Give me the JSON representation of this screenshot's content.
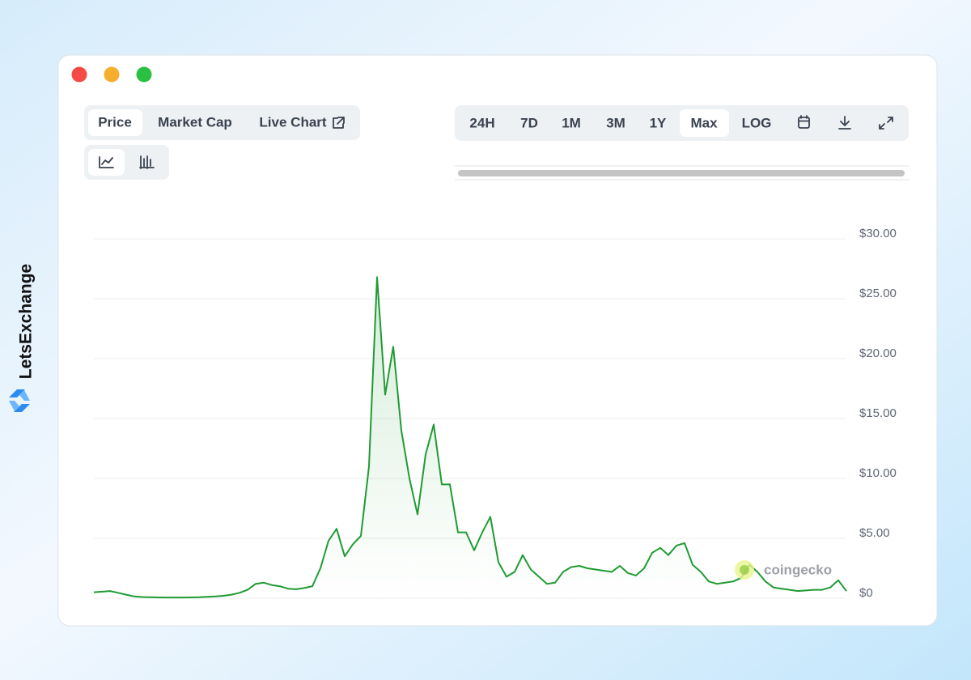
{
  "brand": {
    "name": "LetsExchange"
  },
  "tabs": {
    "views": [
      "Price",
      "Market Cap",
      "Live Chart"
    ],
    "active_view": "Price",
    "ranges": [
      "24H",
      "7D",
      "1M",
      "3M",
      "1Y",
      "Max",
      "LOG"
    ],
    "active_range": "Max"
  },
  "watermark": "coingecko",
  "chart_data": {
    "type": "line",
    "color": "#1f9b33",
    "area": true,
    "grid": true,
    "ylim": [
      0,
      30
    ],
    "yticks": [
      {
        "value": 0,
        "label": "$0"
      },
      {
        "value": 5,
        "label": "$5.00"
      },
      {
        "value": 10,
        "label": "$10.00"
      },
      {
        "value": 15,
        "label": "$15.00"
      },
      {
        "value": 20,
        "label": "$20.00"
      },
      {
        "value": 25,
        "label": "$25.00"
      },
      {
        "value": 30,
        "label": "$30.00"
      }
    ],
    "values": [
      0.5,
      0.55,
      0.6,
      0.45,
      0.3,
      0.15,
      0.1,
      0.08,
      0.07,
      0.06,
      0.06,
      0.06,
      0.07,
      0.08,
      0.12,
      0.15,
      0.2,
      0.3,
      0.45,
      0.7,
      1.2,
      1.3,
      1.1,
      1.0,
      0.8,
      0.75,
      0.85,
      1.0,
      2.5,
      4.8,
      5.8,
      3.5,
      4.5,
      5.2,
      11,
      26.8,
      17,
      21,
      14,
      10,
      7,
      12,
      14.5,
      9.5,
      9.5,
      5.5,
      5.5,
      4,
      5.5,
      6.8,
      3,
      1.8,
      2.2,
      3.6,
      2.4,
      1.8,
      1.2,
      1.3,
      2.2,
      2.6,
      2.7,
      2.5,
      2.4,
      2.3,
      2.2,
      2.7,
      2.1,
      1.9,
      2.5,
      3.8,
      4.2,
      3.6,
      4.4,
      4.6,
      2.8,
      2.2,
      1.4,
      1.2,
      1.3,
      1.4,
      1.7,
      2.8,
      2.2,
      1.4,
      0.9,
      0.8,
      0.7,
      0.6,
      0.65,
      0.7,
      0.7,
      0.9,
      1.5,
      0.6
    ]
  }
}
